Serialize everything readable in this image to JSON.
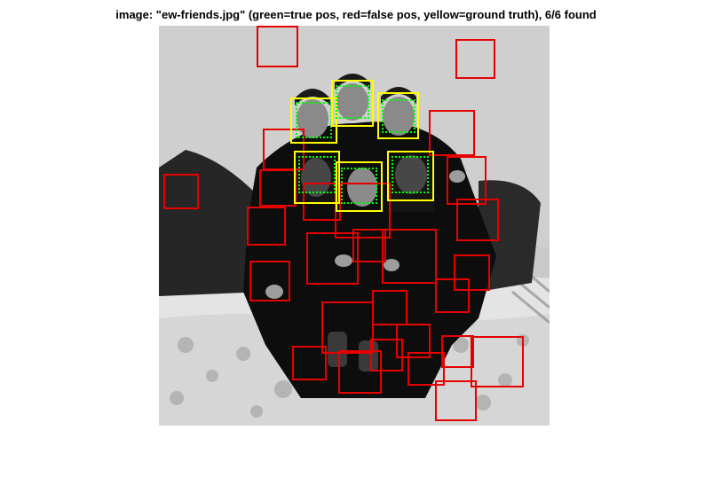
{
  "figure": {
    "title": "image: \"ew-friends.jpg\" (green=true pos, red=false pos, yellow=ground truth), 6/6 found"
  },
  "photo": {
    "description_icon": "grayscale-group-photo"
  },
  "legend_colors": {
    "true_positive": "#00ff00",
    "false_positive": "#e60000",
    "ground_truth": "#ffff00"
  },
  "detections": {
    "found": 6,
    "total": 6
  }
}
